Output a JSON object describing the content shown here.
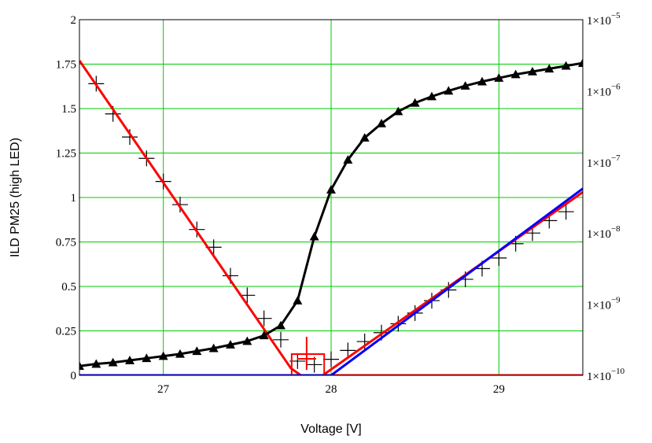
{
  "chart_data": {
    "type": "line",
    "title": "",
    "xlabel": "Voltage [V]",
    "ylabel": "ILD PM25 (high LED)",
    "xlim": [
      26.5,
      29.5
    ],
    "ylim": [
      0,
      2
    ],
    "y2lim_log10": [
      -10,
      -5
    ],
    "grid": true,
    "x_ticks": [
      27,
      28,
      29
    ],
    "y_ticks": [
      0,
      0.25,
      0.5,
      0.75,
      1,
      1.25,
      1.5,
      1.75,
      2
    ],
    "x_tick_labels": [
      "27",
      "28",
      "29"
    ],
    "y_tick_labels": [
      "0",
      "0.25",
      "0.5",
      "0.75",
      "1",
      "1.25",
      "1.5",
      "1.75",
      "2"
    ],
    "y2_tick_labels": [
      {
        "base": "1×10",
        "exp": "−5"
      },
      {
        "base": "1×10",
        "exp": "−6"
      },
      {
        "base": "1×10",
        "exp": "−7"
      },
      {
        "base": "1×10",
        "exp": "−8"
      },
      {
        "base": "1×10",
        "exp": "−9"
      },
      {
        "base": "1×10",
        "exp": "−10"
      }
    ],
    "y2_tick_values": [
      -5,
      -6,
      -7,
      -8,
      -9,
      -10
    ],
    "series": [
      {
        "style": "plus-markers",
        "axis": "left",
        "color": "#000000",
        "x": [
          26.6,
          26.7,
          26.8,
          26.9,
          27.0,
          27.1,
          27.2,
          27.3,
          27.4,
          27.5,
          27.6,
          27.7,
          27.8,
          27.9,
          28.0,
          28.1,
          28.2,
          28.3,
          28.4,
          28.5,
          28.6,
          28.7,
          28.8,
          28.9,
          29.0,
          29.1,
          29.2,
          29.3,
          29.4
        ],
        "y": [
          1.64,
          1.47,
          1.34,
          1.22,
          1.09,
          0.96,
          0.82,
          0.72,
          0.56,
          0.45,
          0.32,
          0.2,
          0.08,
          0.06,
          0.09,
          0.14,
          0.19,
          0.24,
          0.29,
          0.35,
          0.42,
          0.48,
          0.54,
          0.6,
          0.66,
          0.74,
          0.8,
          0.87,
          0.92
        ]
      },
      {
        "style": "line",
        "axis": "left",
        "color": "#ff0000",
        "x": [
          26.5,
          27.76,
          27.82,
          27.88,
          27.94,
          28.0,
          29.5
        ],
        "y": [
          1.77,
          0.04,
          0.0,
          0.0,
          0.0,
          0.0,
          0.0
        ]
      },
      {
        "style": "line",
        "axis": "left",
        "color": "#ff0000",
        "x": [
          27.95,
          29.5
        ],
        "y": [
          0.0,
          1.03
        ]
      },
      {
        "style": "line",
        "axis": "left",
        "color": "#0000ff",
        "x": [
          26.5,
          27.9,
          28.0,
          29.5
        ],
        "y": [
          0.0,
          0.0,
          0.0,
          1.05
        ]
      },
      {
        "style": "line-triangles",
        "axis": "right-log",
        "color": "#000000",
        "x": [
          26.5,
          26.6,
          26.7,
          26.8,
          26.9,
          27.0,
          27.1,
          27.2,
          27.3,
          27.4,
          27.5,
          27.6,
          27.7,
          27.8,
          27.9,
          28.0,
          28.1,
          28.2,
          28.3,
          28.4,
          28.5,
          28.6,
          28.7,
          28.8,
          28.9,
          29.0,
          29.1,
          29.2,
          29.3,
          29.4,
          29.5
        ],
        "log10y": [
          -9.87,
          -9.84,
          -9.82,
          -9.79,
          -9.76,
          -9.73,
          -9.7,
          -9.66,
          -9.62,
          -9.57,
          -9.52,
          -9.44,
          -9.3,
          -8.95,
          -8.05,
          -7.39,
          -6.97,
          -6.66,
          -6.46,
          -6.29,
          -6.17,
          -6.08,
          -6.0,
          -5.93,
          -5.87,
          -5.82,
          -5.77,
          -5.73,
          -5.69,
          -5.65,
          -5.61
        ]
      },
      {
        "style": "bracket-marker",
        "axis": "left",
        "color": "#ff0000",
        "x": [
          27.84,
          27.94
        ],
        "y": [
          0.115,
          0.06
        ]
      }
    ]
  }
}
